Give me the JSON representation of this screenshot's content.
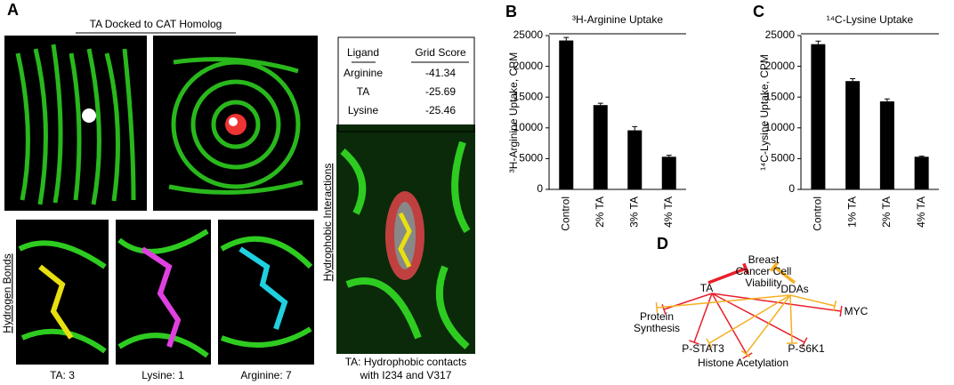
{
  "panel_labels": [
    "A",
    "B",
    "C",
    "D"
  ],
  "panel_a": {
    "title": "TA Docked to CAT Homolog",
    "table": {
      "header": [
        "Ligand",
        "Grid Score"
      ],
      "rows": [
        [
          "Arginine",
          -41.34
        ],
        [
          "TA",
          -25.69
        ],
        [
          "Lysine",
          -25.46
        ]
      ]
    },
    "hydrogen_bonds_label": "Hydrogen Bonds",
    "hydrogen_bonds_captions": [
      "TA: 3",
      "Lysine: 1",
      "Arginine: 7"
    ],
    "hydrophobic_label": "Hydrophobic Interactions",
    "hydrophobic_caption": [
      "TA:  Hydrophobic contacts",
      "with I234 and V317"
    ]
  },
  "chart_data": [
    {
      "type": "bar",
      "title": "³H-Arginine Uptake",
      "y_label": "³H-Arginine Uptake, CPM",
      "categories": [
        "Control",
        "2% TA",
        "3% TA",
        "4% TA"
      ],
      "values": [
        24200,
        13700,
        9600,
        5300
      ],
      "errors": [
        500,
        300,
        600,
        250
      ],
      "color": "#000000",
      "ylim": [
        0,
        25000
      ],
      "yticks": [
        0,
        5000,
        10000,
        15000,
        20000,
        25000
      ]
    },
    {
      "type": "bar",
      "title": "¹⁴C-Lysine Uptake",
      "y_label": "¹⁴C-Lysine Uptake, CPM",
      "categories": [
        "Control",
        "1% TA",
        "2% TA",
        "4% TA"
      ],
      "values": [
        23600,
        17600,
        14300,
        5300
      ],
      "errors": [
        500,
        400,
        400,
        100
      ],
      "color": "#000000",
      "ylim": [
        0,
        25000
      ],
      "yticks": [
        0,
        5000,
        10000,
        15000,
        20000,
        25000
      ]
    }
  ],
  "panel_d": {
    "nodes": [
      [
        "Breast",
        "Cancer Cell",
        "Viability"
      ],
      [
        "TA"
      ],
      [
        "DDAs"
      ],
      [
        "MYC"
      ],
      [
        "Protein",
        "Synthesis"
      ],
      [
        "P-STAT3"
      ],
      [
        "P-S6K1"
      ],
      [
        "Histone Acetylation"
      ]
    ]
  }
}
